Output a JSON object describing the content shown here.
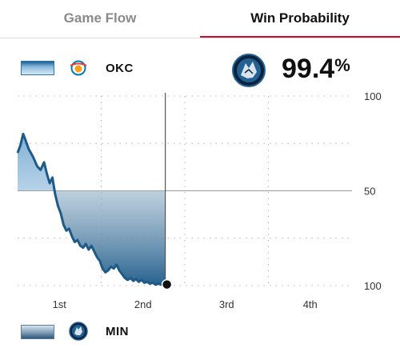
{
  "tabs": [
    {
      "label": "Game Flow",
      "active": false
    },
    {
      "label": "Win Probability",
      "active": true
    }
  ],
  "accent_color": "#c8102e",
  "top_team": {
    "abbr": "OKC",
    "logo_icon": "thunder-logo-icon"
  },
  "leader": {
    "logo_icon": "timberwolves-logo-icon",
    "probability": "99.4",
    "unit": "%"
  },
  "bottom_team": {
    "abbr": "MIN",
    "logo_icon": "timberwolves-logo-icon"
  },
  "chart_data": {
    "type": "area",
    "y_ticks": [
      "100",
      "50",
      "100"
    ],
    "x_ticks": [
      "1st",
      "2nd",
      "3rd",
      "4th"
    ],
    "ylim": [
      -100,
      100
    ],
    "x_range": [
      0,
      48
    ],
    "series_color": "#1d5a88",
    "series": [
      {
        "values": [
          [
            0,
            40
          ],
          [
            0.4,
            48
          ],
          [
            0.8,
            60
          ],
          [
            1.2,
            52
          ],
          [
            1.6,
            44
          ],
          [
            2.2,
            36
          ],
          [
            2.8,
            26
          ],
          [
            3.3,
            22
          ],
          [
            3.8,
            30
          ],
          [
            4.2,
            18
          ],
          [
            4.6,
            8
          ],
          [
            5.0,
            14
          ],
          [
            5.4,
            -4
          ],
          [
            5.8,
            -16
          ],
          [
            6.2,
            -24
          ],
          [
            6.6,
            -36
          ],
          [
            7.0,
            -42
          ],
          [
            7.4,
            -40
          ],
          [
            7.8,
            -48
          ],
          [
            8.2,
            -54
          ],
          [
            8.6,
            -52
          ],
          [
            9.0,
            -58
          ],
          [
            9.4,
            -60
          ],
          [
            9.8,
            -56
          ],
          [
            10.2,
            -62
          ],
          [
            10.6,
            -58
          ],
          [
            11.0,
            -64
          ],
          [
            11.4,
            -70
          ],
          [
            11.8,
            -74
          ],
          [
            12.2,
            -82
          ],
          [
            12.6,
            -86
          ],
          [
            13.0,
            -84
          ],
          [
            13.4,
            -80
          ],
          [
            13.8,
            -82
          ],
          [
            14.2,
            -78
          ],
          [
            14.6,
            -84
          ],
          [
            15.0,
            -88
          ],
          [
            15.4,
            -92
          ],
          [
            15.8,
            -94
          ],
          [
            16.2,
            -92
          ],
          [
            16.6,
            -95
          ],
          [
            17.0,
            -93
          ],
          [
            17.4,
            -96
          ],
          [
            17.8,
            -94
          ],
          [
            18.2,
            -97
          ],
          [
            18.6,
            -96
          ],
          [
            19.0,
            -98
          ],
          [
            19.4,
            -97
          ],
          [
            19.8,
            -99
          ],
          [
            20.2,
            -98
          ],
          [
            20.6,
            -99
          ],
          [
            21.2,
            -98.8
          ]
        ]
      }
    ]
  }
}
